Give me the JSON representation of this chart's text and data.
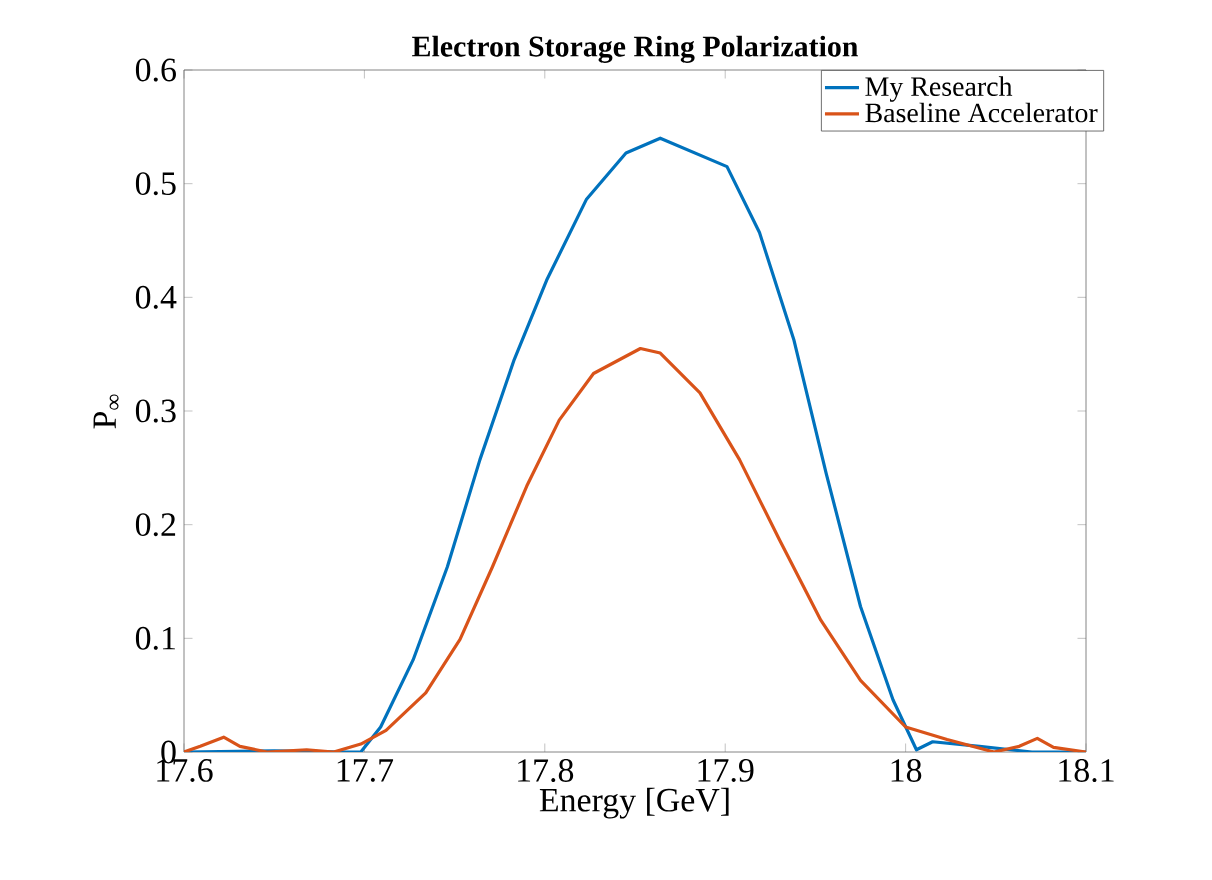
{
  "chart_data": {
    "type": "line",
    "title": "Electron Storage Ring Polarization",
    "xlabel": "Energy [GeV]",
    "ylabel": "P$_{∞}$",
    "xlim": [
      17.6,
      18.1
    ],
    "xticks": [
      17.6,
      17.7,
      17.8,
      17.9,
      18,
      18.1
    ],
    "ylim": [
      0,
      0.6
    ],
    "yticks": [
      0,
      0.1,
      0.2,
      0.3,
      0.4,
      0.5,
      0.6
    ],
    "legend": "top right",
    "marker": "none",
    "line_style": "solid",
    "grid": false,
    "series": [
      {
        "name": "My Research",
        "color": "#0072bd",
        "x": [
          17.6,
          17.65,
          17.69,
          17.698,
          17.709,
          17.727,
          17.746,
          17.764,
          17.783,
          17.801,
          17.823,
          17.845,
          17.864,
          17.901,
          17.919,
          17.938,
          17.956,
          17.975,
          17.993,
          18.006,
          18.015,
          18.041,
          18.07,
          18.1
        ],
        "values": [
          0,
          0.001,
          0,
          0,
          0.022,
          0.081,
          0.163,
          0.257,
          0.345,
          0.415,
          0.486,
          0.527,
          0.54,
          0.515,
          0.457,
          0.363,
          0.245,
          0.128,
          0.046,
          0.002,
          0.009,
          0.005,
          0,
          0
        ]
      },
      {
        "name": "Baseline Accelerator",
        "color": "#d95319",
        "x": [
          17.6,
          17.609,
          17.622,
          17.631,
          17.646,
          17.668,
          17.683,
          17.698,
          17.712,
          17.734,
          17.753,
          17.771,
          17.79,
          17.808,
          17.827,
          17.853,
          17.864,
          17.886,
          17.908,
          17.93,
          17.953,
          17.975,
          18.0,
          18.023,
          18.049,
          18.063,
          18.073,
          18.082,
          18.1
        ],
        "values": [
          0,
          0.005,
          0.013,
          0.005,
          0,
          0.002,
          0,
          0.007,
          0.019,
          0.052,
          0.099,
          0.163,
          0.234,
          0.292,
          0.333,
          0.355,
          0.351,
          0.316,
          0.257,
          0.187,
          0.116,
          0.063,
          0.022,
          0.011,
          0,
          0.005,
          0.012,
          0.004,
          0
        ]
      }
    ]
  }
}
